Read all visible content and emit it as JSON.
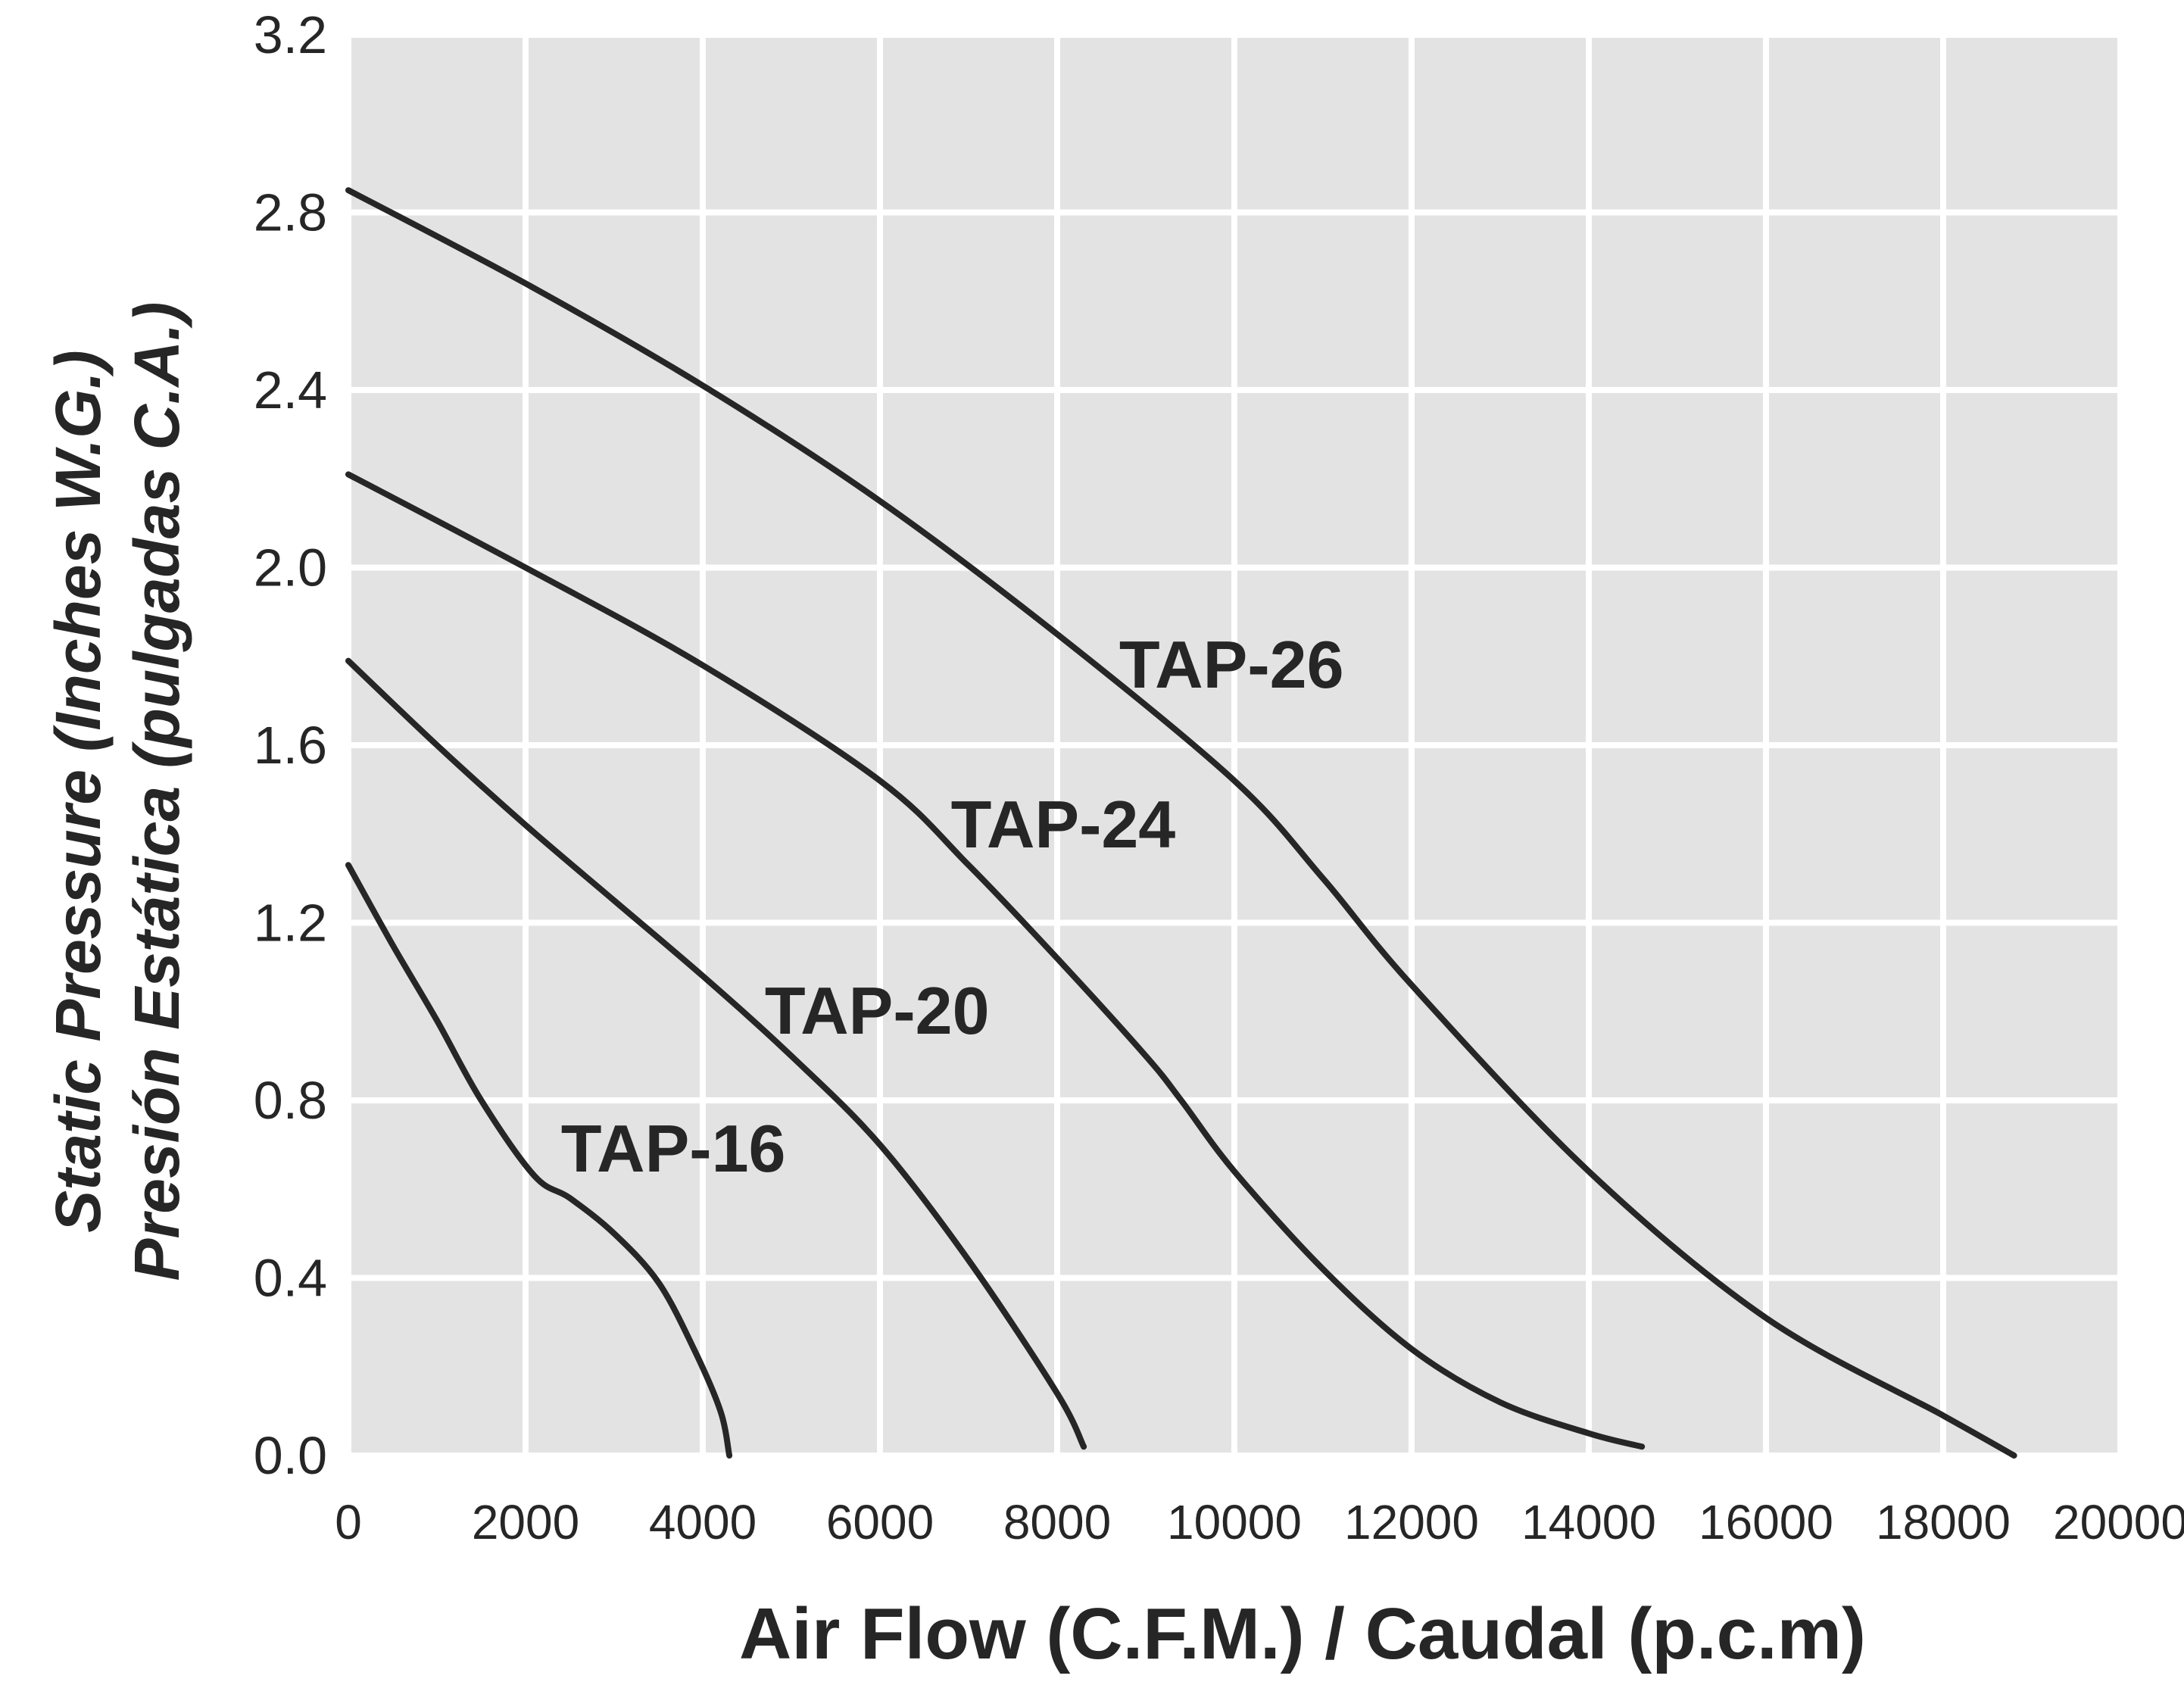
{
  "chart_data": {
    "type": "line",
    "title": "",
    "xlabel": "Air Flow (C.F.M.) / Caudal (p.c.m)",
    "ylabel_line1": "Static Pressure (Inches W.G.)",
    "ylabel_line2": "Presión Estática (pulgadas C.A.)",
    "xlim": [
      0,
      20000
    ],
    "ylim": [
      0,
      3.2
    ],
    "x_ticks": [
      0,
      2000,
      4000,
      6000,
      8000,
      10000,
      12000,
      14000,
      16000,
      18000,
      20000
    ],
    "x_tick_labels": [
      "0",
      "2000",
      "4000",
      "6000",
      "8000",
      "10000",
      "12000",
      "14000",
      "16000",
      "18000",
      "20000"
    ],
    "y_ticks": [
      0,
      0.4,
      0.8,
      1.2,
      1.6,
      2.0,
      2.4,
      2.8,
      3.2
    ],
    "y_tick_labels": [
      "0.0",
      "0.4",
      "0.8",
      "1.2",
      "1.6",
      "2.0",
      "2.4",
      "2.8",
      "3.2"
    ],
    "grid": true,
    "legend": "none",
    "colors": {
      "plot_background": "#e3e3e3",
      "grid": "#ffffff",
      "curve": "#262626",
      "text": "#262626"
    },
    "series": [
      {
        "name": "TAP-26",
        "points": [
          [
            0,
            2.85
          ],
          [
            2000,
            2.64
          ],
          [
            4000,
            2.41
          ],
          [
            6000,
            2.15
          ],
          [
            8000,
            1.85
          ],
          [
            10000,
            1.52
          ],
          [
            11000,
            1.3
          ],
          [
            12000,
            1.06
          ],
          [
            14000,
            0.64
          ],
          [
            16000,
            0.31
          ],
          [
            18000,
            0.09
          ],
          [
            18800,
            0.0
          ]
        ]
      },
      {
        "name": "TAP-24",
        "points": [
          [
            0,
            2.21
          ],
          [
            2000,
            2.0
          ],
          [
            4000,
            1.78
          ],
          [
            6000,
            1.52
          ],
          [
            7000,
            1.33
          ],
          [
            8000,
            1.12
          ],
          [
            9000,
            0.9
          ],
          [
            9400,
            0.8
          ],
          [
            10000,
            0.64
          ],
          [
            11000,
            0.42
          ],
          [
            12000,
            0.24
          ],
          [
            13000,
            0.12
          ],
          [
            14000,
            0.05
          ],
          [
            14600,
            0.02
          ]
        ]
      },
      {
        "name": "TAP-20",
        "points": [
          [
            0,
            1.79
          ],
          [
            1000,
            1.6
          ],
          [
            2000,
            1.42
          ],
          [
            3000,
            1.25
          ],
          [
            4000,
            1.08
          ],
          [
            5000,
            0.9
          ],
          [
            6000,
            0.7
          ],
          [
            7000,
            0.44
          ],
          [
            8000,
            0.14
          ],
          [
            8300,
            0.02
          ]
        ]
      },
      {
        "name": "TAP-16",
        "points": [
          [
            0,
            1.33
          ],
          [
            500,
            1.15
          ],
          [
            1000,
            0.98
          ],
          [
            1500,
            0.8
          ],
          [
            2100,
            0.63
          ],
          [
            2500,
            0.58
          ],
          [
            3000,
            0.5
          ],
          [
            3500,
            0.39
          ],
          [
            3900,
            0.24
          ],
          [
            4200,
            0.1
          ],
          [
            4300,
            0.0
          ]
        ]
      }
    ]
  }
}
